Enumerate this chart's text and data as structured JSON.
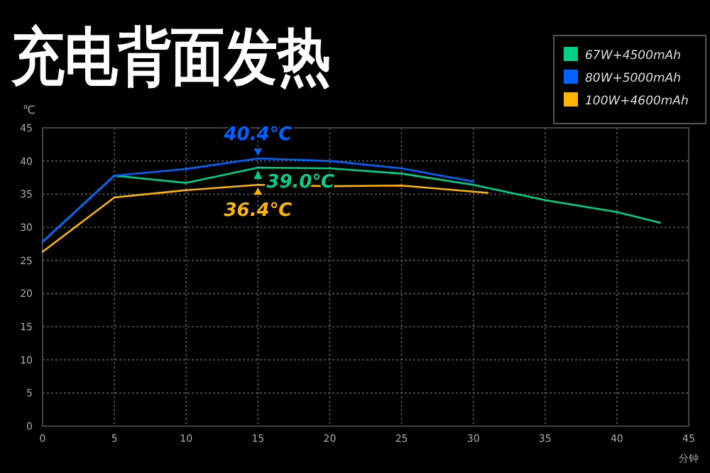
{
  "chart_data": {
    "type": "line",
    "title": "充电背面发热",
    "ylabel": "℃",
    "xlabel": "分钟",
    "xlim": [
      0,
      45
    ],
    "xticks": [
      0,
      5,
      10,
      15,
      20,
      25,
      30,
      35,
      40,
      45
    ],
    "ylim": [
      0,
      45
    ],
    "yticks": [
      0,
      5,
      10,
      15,
      20,
      25,
      30,
      35,
      40,
      45
    ],
    "grid": true,
    "legend": "top right",
    "series": [
      {
        "name": "67W+4500mAh",
        "color": "#00d084",
        "x": [
          0,
          5,
          10,
          15,
          20,
          25,
          30,
          35,
          40,
          43
        ],
        "values": [
          27.8,
          37.8,
          36.7,
          39.0,
          38.9,
          38.1,
          36.4,
          34.1,
          32.3,
          30.7
        ]
      },
      {
        "name": "80W+5000mAh",
        "color": "#0062ff",
        "x": [
          0,
          5,
          10,
          15,
          20,
          25,
          30
        ],
        "values": [
          27.8,
          37.8,
          38.8,
          40.4,
          40.0,
          38.9,
          36.9
        ]
      },
      {
        "name": "100W+4600mAh",
        "color": "#ffb400",
        "x": [
          0,
          5,
          10,
          15,
          20,
          25,
          31
        ],
        "values": [
          26.3,
          34.5,
          35.6,
          36.4,
          36.2,
          36.3,
          35.2
        ]
      }
    ],
    "annotations": [
      {
        "text": "40.4℃",
        "y": 40.4
      },
      {
        "text": "39.0℃",
        "y": 39.0
      },
      {
        "text": "36.4℃",
        "y": 36.4
      }
    ]
  }
}
